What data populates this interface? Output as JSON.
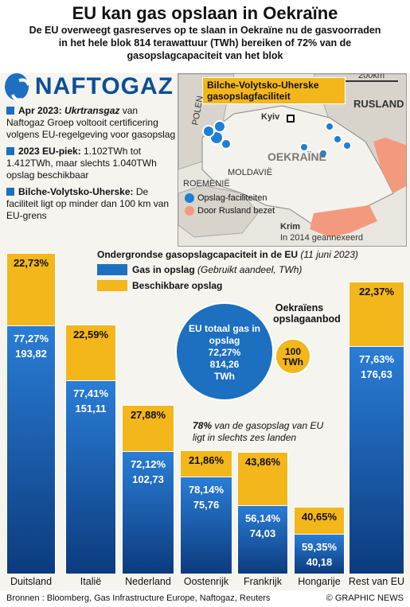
{
  "header": {
    "title": "EU kan gas opslaan in Oekraïne",
    "subtitle": "De EU overweegt gasreserves op te slaan in Oekraïne nu de gasvoorraden in het hele blok 814 terawattuur (TWh) bereiken of 72% van de gasopslagcapaciteit van het blok"
  },
  "logo": {
    "text": "NAFTOGAZ",
    "icon": "naftogaz-flame-icon"
  },
  "facts": [
    {
      "head": "Apr 2023:",
      "head_em": "Ukrtransgaz",
      "text": " van Naftogaz Groep voltooit certificering volgens EU-regelgeving voor gasopslag"
    },
    {
      "head": "2023 EU-piek:",
      "head_em": "",
      "text": " 1.102TWh tot 1.412TWh, maar slechts 1.040TWh opslag beschikbaar"
    },
    {
      "head": "Bilche-Volytsko-Uherske:",
      "head_em": "",
      "text": " De faciliteit ligt op minder dan 100 km van EU-grens"
    }
  ],
  "map": {
    "facility_label": "Bilche-Volytsko-Uherske gasopslagfaciliteit",
    "scale": "200km",
    "labels": {
      "poland": "POLEN",
      "russia": "RUSLAND",
      "ukraine": "OEKRAÏNE",
      "kyiv": "Kyiv",
      "moldova": "MOLDAVIË",
      "romania": "ROEMENIË",
      "crimea": "Krim",
      "crimea_note": "In 2014 geannexeerd"
    },
    "legend": [
      {
        "label": "Opslag-faciliteiten",
        "color": "#1d7fd6"
      },
      {
        "label": "Door Rusland bezet",
        "color": "#f39a7e"
      }
    ]
  },
  "chart_data": {
    "type": "bar",
    "title": "Ondergrondse gasopslagcapaciteit in de EU",
    "date": "(11 juni 2023)",
    "legend": [
      {
        "name": "Gas in opslag",
        "note": "(Gebruikt aandeel, TWh)",
        "color": "#1d6fc0"
      },
      {
        "name": "Beschikbare opslag",
        "note": "",
        "color": "#f3b61b"
      }
    ],
    "categories": [
      "Duitsland",
      "Italië",
      "Nederland",
      "Oostenrijk",
      "Frankrijk",
      "Hongarije",
      "Rest van EU"
    ],
    "series": [
      {
        "name": "Gas in opslag",
        "pct": [
          "77,27%",
          "77,41%",
          "72,12%",
          "78,14%",
          "56,14%",
          "59,35%",
          "77,63%"
        ],
        "twh": [
          "193,82",
          "151,11",
          "102,73",
          "75,76",
          "74,03",
          "40,18",
          "176,63"
        ]
      },
      {
        "name": "Beschikbare opslag",
        "pct": [
          "22,73%",
          "22,59%",
          "27,88%",
          "21,86%",
          "43,86%",
          "40,65%",
          "22,37%"
        ]
      }
    ],
    "eu_total": {
      "label": "EU totaal gas in opslag",
      "pct": "72,27%",
      "twh": "814,26",
      "unit": "TWh"
    },
    "ukraine": {
      "label": "Oekraïens opslagaanbod",
      "value": "100",
      "unit": "TWh"
    },
    "note_bold": "78%",
    "note": " van de gasopslag van EU ligt in slechts zes landen"
  },
  "footer": {
    "sources_label": "Bronnen",
    "sources": ": Bloomberg, Gas Infrastructure Europe, Naftogaz, Reuters",
    "credit": "© GRAPHIC NEWS"
  }
}
